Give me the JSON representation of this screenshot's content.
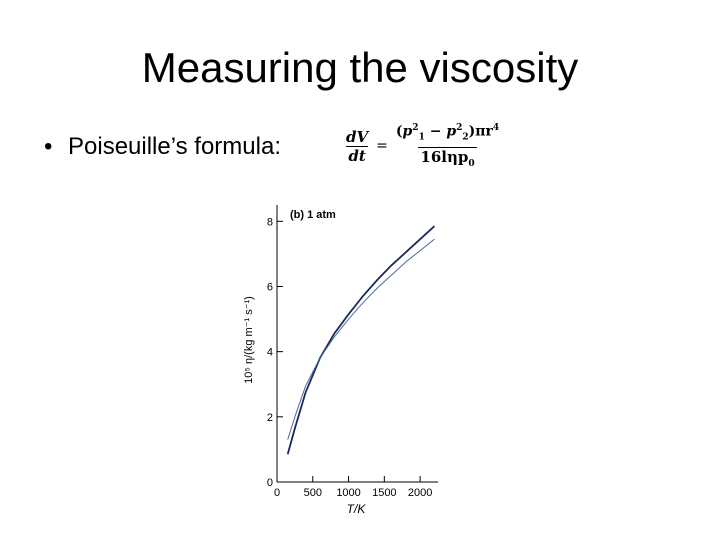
{
  "slide": {
    "title": "Measuring the viscosity",
    "bullet": "Poiseuille’s formula:"
  },
  "formula": {
    "lhs_num": "dV",
    "lhs_den": "dt",
    "equals": "=",
    "rhs_num_open": "(",
    "p1": "p",
    "p1_sub": "1",
    "p1_sup": "2",
    "minus": " − ",
    "p2": "p",
    "p2_sub": "2",
    "p2_sup": "2",
    "rhs_num_close": ")πr",
    "r_sup": "4",
    "rhs_den": "16lηp",
    "p0_sub": "0"
  },
  "chart_data": {
    "type": "line",
    "panel_label": "(b) 1 atm",
    "xlabel": "T/K",
    "ylabel": "10⁵ η/(kg m⁻¹ s⁻¹)",
    "xlim": [
      0,
      2250
    ],
    "ylim": [
      0,
      8.5
    ],
    "xticks": [
      "0",
      "500",
      "1000",
      "1500",
      "2000"
    ],
    "xtick_values": [
      0,
      500,
      1000,
      1500,
      2000
    ],
    "yticks": [
      "0",
      "2",
      "4",
      "6",
      "8"
    ],
    "ytick_values": [
      0,
      2,
      4,
      6,
      8
    ],
    "series": [
      {
        "color": "#1a2a5a",
        "x": [
          150,
          250,
          400,
          600,
          800,
          1000,
          1200,
          1400,
          1600,
          1800,
          2000,
          2200
        ],
        "y": [
          0.85,
          1.65,
          2.75,
          3.8,
          4.55,
          5.15,
          5.7,
          6.2,
          6.65,
          7.05,
          7.45,
          7.85
        ]
      },
      {
        "color": "#4a6aa0",
        "x": [
          150,
          250,
          400,
          600,
          800,
          1000,
          1200,
          1400,
          1600,
          1800,
          2000,
          2200
        ],
        "y": [
          1.3,
          2.0,
          2.95,
          3.8,
          4.45,
          5.0,
          5.5,
          5.95,
          6.35,
          6.75,
          7.1,
          7.45
        ]
      }
    ],
    "grid": false,
    "legend": "none"
  }
}
